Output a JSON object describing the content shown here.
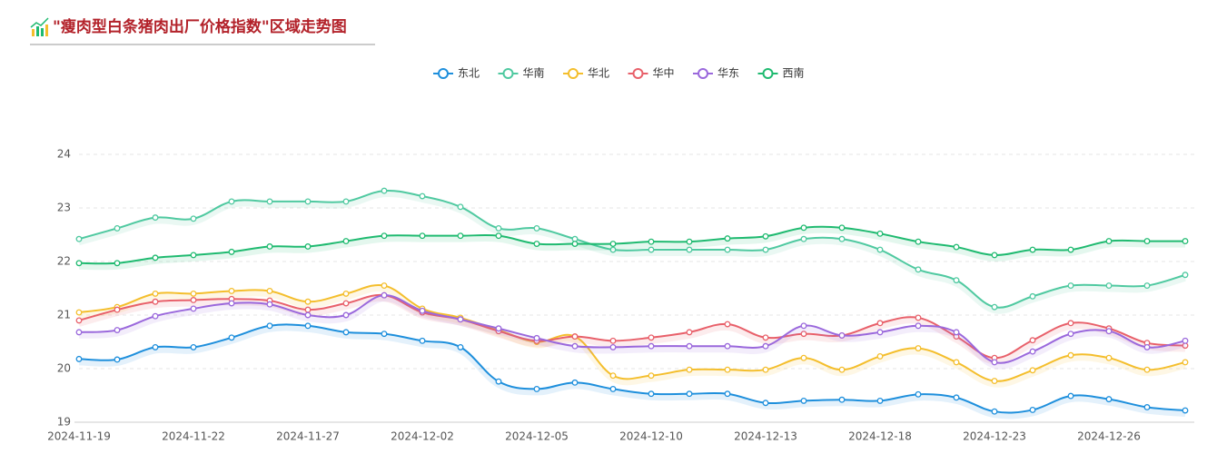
{
  "chart_data": {
    "type": "line",
    "title": "\"瘦肉型白条猪肉出厂价格指数\"区域走势图",
    "categories": [
      "2024-11-19",
      null,
      null,
      "2024-11-22",
      null,
      null,
      "2024-11-27",
      null,
      null,
      "2024-12-02",
      null,
      null,
      "2024-12-05",
      null,
      null,
      "2024-12-10",
      null,
      null,
      "2024-12-13",
      null,
      null,
      "2024-12-18",
      null,
      null,
      "2024-12-23",
      null,
      null,
      "2024-12-26",
      null,
      null
    ],
    "ylim": [
      19,
      24
    ],
    "yticks": [
      19,
      20,
      21,
      22,
      23,
      24
    ],
    "grid": true,
    "legend": "top",
    "series": [
      {
        "name": "东北",
        "color": "#1e8fdc",
        "values": [
          20.18,
          20.17,
          20.4,
          20.4,
          20.58,
          20.8,
          20.8,
          20.68,
          20.65,
          20.52,
          20.4,
          19.76,
          19.62,
          19.74,
          19.62,
          19.53,
          19.53,
          19.53,
          19.36,
          19.4,
          19.42,
          19.4,
          19.52,
          19.46,
          19.2,
          19.23,
          19.49,
          19.43,
          19.28,
          19.22
        ]
      },
      {
        "name": "华南",
        "color": "#4fc9a0",
        "values": [
          22.42,
          22.62,
          22.82,
          22.8,
          23.12,
          23.12,
          23.12,
          23.12,
          23.32,
          23.22,
          23.02,
          22.62,
          22.62,
          22.42,
          22.22,
          22.22,
          22.22,
          22.22,
          22.22,
          22.42,
          22.42,
          22.22,
          21.85,
          21.65,
          21.15,
          21.35,
          21.55,
          21.55,
          21.55,
          21.75
        ]
      },
      {
        "name": "华北",
        "color": "#f4be2c",
        "values": [
          21.05,
          21.15,
          21.4,
          21.4,
          21.45,
          21.45,
          21.25,
          21.4,
          21.55,
          21.12,
          20.95,
          20.72,
          20.5,
          20.6,
          19.87,
          19.87,
          19.98,
          19.98,
          19.98,
          20.2,
          19.98,
          20.23,
          20.38,
          20.12,
          19.77,
          19.97,
          20.25,
          20.2,
          19.98,
          20.12
        ]
      },
      {
        "name": "华中",
        "color": "#e8606a",
        "values": [
          20.9,
          21.1,
          21.25,
          21.28,
          21.3,
          21.27,
          21.1,
          21.22,
          21.37,
          21.05,
          20.92,
          20.7,
          20.52,
          20.6,
          20.52,
          20.58,
          20.68,
          20.83,
          20.58,
          20.65,
          20.62,
          20.85,
          20.95,
          20.6,
          20.2,
          20.53,
          20.85,
          20.75,
          20.48,
          20.43
        ]
      },
      {
        "name": "华东",
        "color": "#9a68dc",
        "values": [
          20.68,
          20.72,
          20.98,
          21.12,
          21.22,
          21.2,
          21.0,
          21.0,
          21.37,
          21.08,
          20.92,
          20.75,
          20.57,
          20.42,
          20.4,
          20.42,
          20.42,
          20.42,
          20.42,
          20.8,
          20.62,
          20.68,
          20.8,
          20.68,
          20.12,
          20.32,
          20.65,
          20.7,
          20.4,
          20.52
        ]
      },
      {
        "name": "西南",
        "color": "#1fba70",
        "values": [
          21.97,
          21.97,
          22.07,
          22.12,
          22.18,
          22.28,
          22.28,
          22.38,
          22.48,
          22.48,
          22.48,
          22.48,
          22.33,
          22.33,
          22.33,
          22.37,
          22.37,
          22.43,
          22.47,
          22.63,
          22.63,
          22.52,
          22.37,
          22.27,
          22.12,
          22.22,
          22.22,
          22.38,
          22.38,
          22.38
        ]
      }
    ]
  }
}
